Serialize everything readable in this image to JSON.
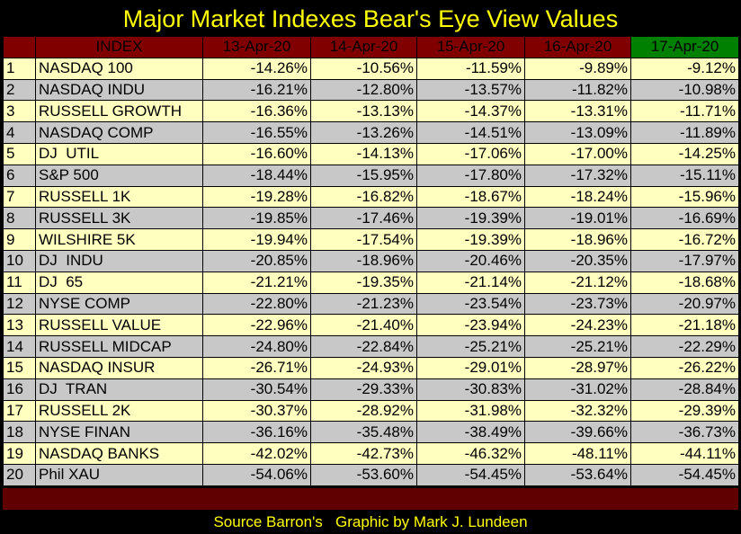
{
  "title": "Major Market Indexes Bear's Eye View Values",
  "source": "Source Barron's   Graphic by Mark J. Lundeen",
  "colors": {
    "header_bg": "#800000",
    "header_text": "#ffff00",
    "latest_header_bg": "#008000",
    "odd_row": "#ffffc0",
    "even_row": "#c8c8c8"
  },
  "chart_data": {
    "type": "table",
    "title": "Major Market Indexes Bear's Eye View Values",
    "columns": [
      "INDEX",
      "13-Apr-20",
      "14-Apr-20",
      "15-Apr-20",
      "16-Apr-20",
      "17-Apr-20"
    ],
    "rows": [
      {
        "rank": "1",
        "index": "NASDAQ 100",
        "values": [
          "-14.26%",
          "-10.56%",
          "-11.59%",
          "-9.89%",
          "-9.12%"
        ]
      },
      {
        "rank": "2",
        "index": "NASDAQ INDU",
        "values": [
          "-16.21%",
          "-12.80%",
          "-13.57%",
          "-11.82%",
          "-10.98%"
        ]
      },
      {
        "rank": "3",
        "index": "RUSSELL GROWTH",
        "values": [
          "-16.36%",
          "-13.13%",
          "-14.37%",
          "-13.31%",
          "-11.71%"
        ]
      },
      {
        "rank": "4",
        "index": "NASDAQ COMP",
        "values": [
          "-16.55%",
          "-13.26%",
          "-14.51%",
          "-13.09%",
          "-11.89%"
        ]
      },
      {
        "rank": "5",
        "index": "DJ  UTIL",
        "values": [
          "-16.60%",
          "-14.13%",
          "-17.06%",
          "-17.00%",
          "-14.25%"
        ]
      },
      {
        "rank": "6",
        "index": "S&P 500",
        "values": [
          "-18.44%",
          "-15.95%",
          "-17.80%",
          "-17.32%",
          "-15.11%"
        ]
      },
      {
        "rank": "7",
        "index": "RUSSELL 1K",
        "values": [
          "-19.28%",
          "-16.82%",
          "-18.67%",
          "-18.24%",
          "-15.96%"
        ]
      },
      {
        "rank": "8",
        "index": "RUSSELL 3K",
        "values": [
          "-19.85%",
          "-17.46%",
          "-19.39%",
          "-19.01%",
          "-16.69%"
        ]
      },
      {
        "rank": "9",
        "index": "WILSHIRE 5K",
        "values": [
          "-19.94%",
          "-17.54%",
          "-19.39%",
          "-18.96%",
          "-16.72%"
        ]
      },
      {
        "rank": "10",
        "index": "DJ  INDU",
        "values": [
          "-20.85%",
          "-18.96%",
          "-20.46%",
          "-20.35%",
          "-17.97%"
        ]
      },
      {
        "rank": "11",
        "index": "DJ  65",
        "values": [
          "-21.21%",
          "-19.35%",
          "-21.14%",
          "-21.12%",
          "-18.68%"
        ]
      },
      {
        "rank": "12",
        "index": "NYSE COMP",
        "values": [
          "-22.80%",
          "-21.23%",
          "-23.54%",
          "-23.73%",
          "-20.97%"
        ]
      },
      {
        "rank": "13",
        "index": "RUSSELL VALUE",
        "values": [
          "-22.96%",
          "-21.40%",
          "-23.94%",
          "-24.23%",
          "-21.18%"
        ]
      },
      {
        "rank": "14",
        "index": "RUSSELL MIDCAP",
        "values": [
          "-24.80%",
          "-22.84%",
          "-25.21%",
          "-25.21%",
          "-22.29%"
        ]
      },
      {
        "rank": "15",
        "index": "NASDAQ INSUR",
        "values": [
          "-26.71%",
          "-24.93%",
          "-29.01%",
          "-28.97%",
          "-26.22%"
        ]
      },
      {
        "rank": "16",
        "index": "DJ  TRAN",
        "values": [
          "-30.54%",
          "-29.33%",
          "-30.83%",
          "-31.02%",
          "-28.84%"
        ]
      },
      {
        "rank": "17",
        "index": "RUSSELL 2K",
        "values": [
          "-30.37%",
          "-28.92%",
          "-31.98%",
          "-32.32%",
          "-29.39%"
        ]
      },
      {
        "rank": "18",
        "index": "NYSE FINAN",
        "values": [
          "-36.16%",
          "-35.48%",
          "-38.49%",
          "-39.66%",
          "-36.73%"
        ]
      },
      {
        "rank": "19",
        "index": "NASDAQ BANKS",
        "values": [
          "-42.02%",
          "-42.73%",
          "-46.32%",
          "-48.11%",
          "-44.11%"
        ]
      },
      {
        "rank": "20",
        "index": "Phil XAU",
        "values": [
          "-54.06%",
          "-53.60%",
          "-54.45%",
          "-53.64%",
          "-54.45%"
        ]
      }
    ]
  }
}
